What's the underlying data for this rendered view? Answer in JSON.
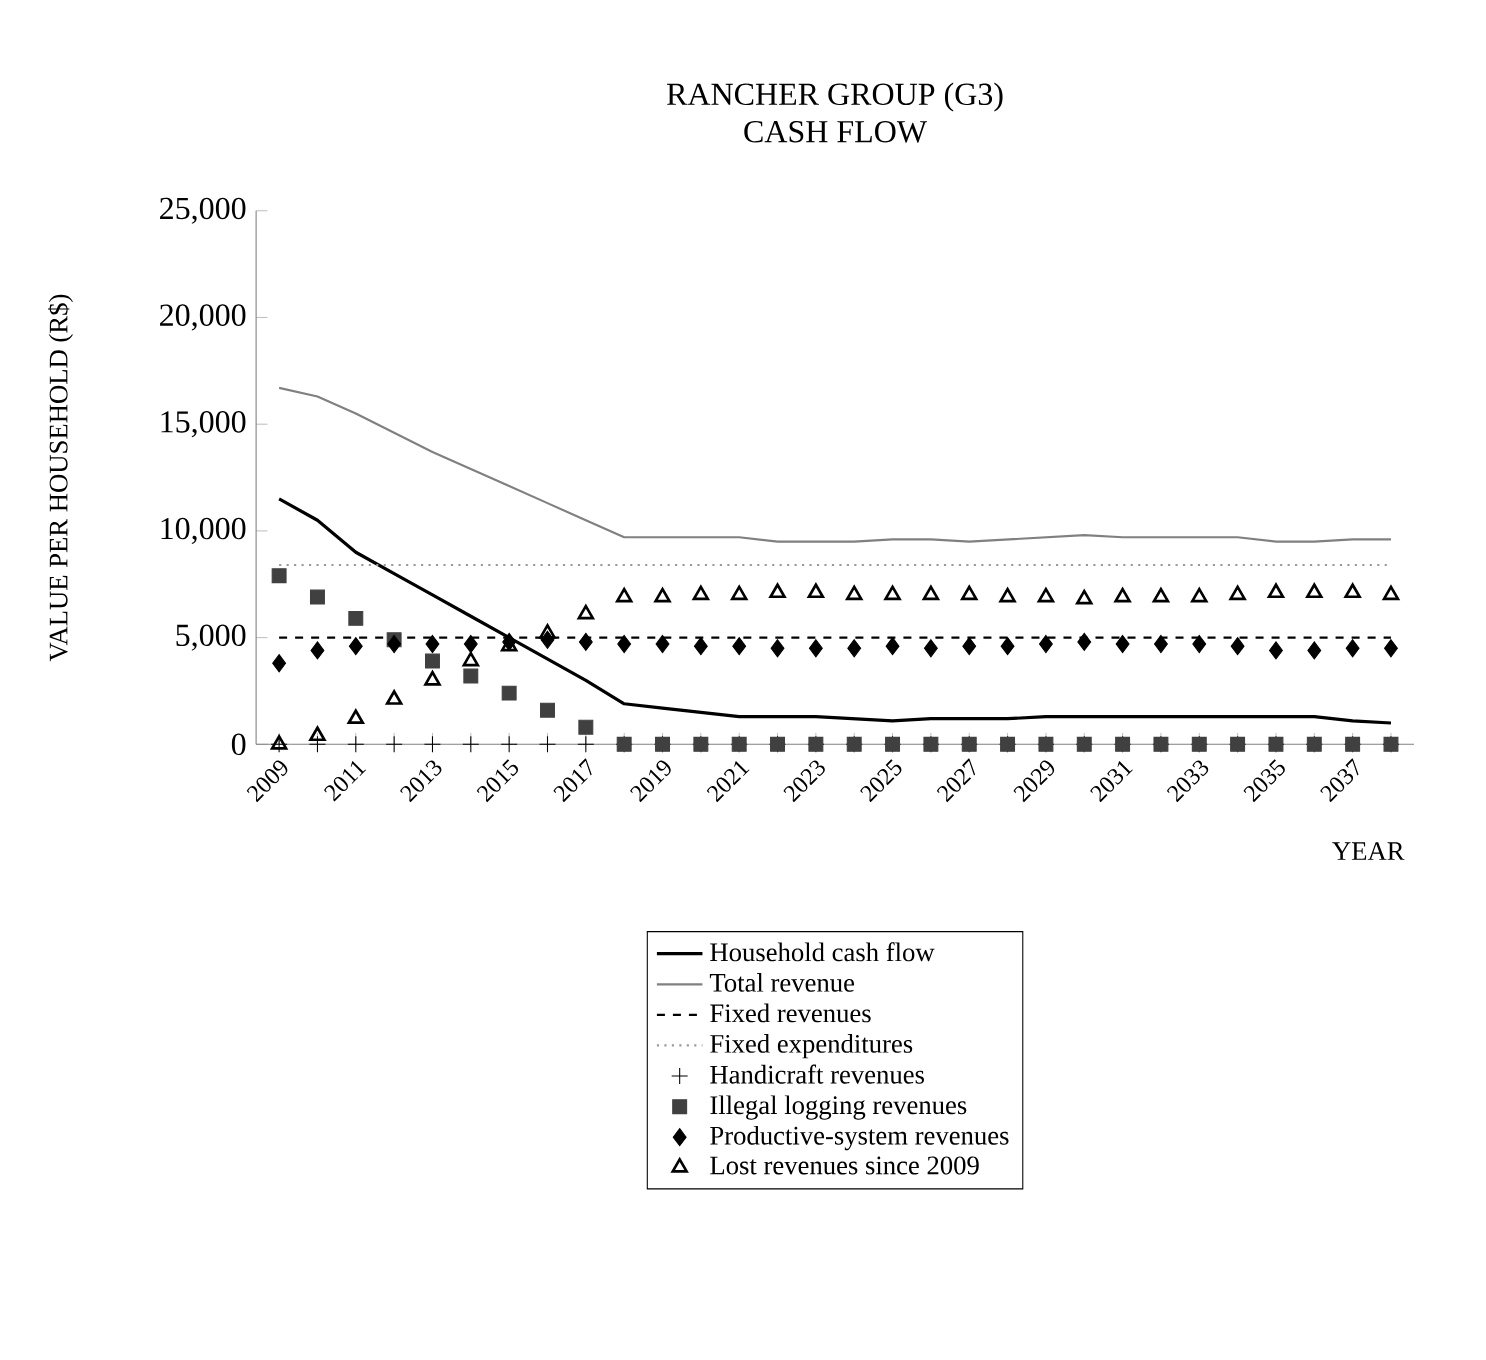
{
  "chart_data": {
    "type": "line",
    "title": "RANCHER GROUP (G3)",
    "subtitle": "CASH FLOW",
    "xlabel": "YEAR",
    "ylabel": "VALUE PER HOUSEHOLD (R$)",
    "x": [
      2009,
      2010,
      2011,
      2012,
      2013,
      2014,
      2015,
      2016,
      2017,
      2018,
      2019,
      2020,
      2021,
      2022,
      2023,
      2024,
      2025,
      2026,
      2027,
      2028,
      2029,
      2030,
      2031,
      2032,
      2033,
      2034,
      2035,
      2036,
      2037,
      2038
    ],
    "xlim": [
      2008.4,
      2038.6
    ],
    "xticks": [
      2009,
      {
        "value": 2010,
        "label": null
      },
      2011,
      {
        "value": 2012,
        "label": null
      },
      2013,
      {
        "value": 2014,
        "label": null
      },
      2015,
      {
        "value": 2016,
        "label": null
      },
      2017,
      {
        "value": 2018,
        "label": null
      },
      2019,
      {
        "value": 2020,
        "label": null
      },
      2021,
      {
        "value": 2022,
        "label": null
      },
      2023,
      {
        "value": 2024,
        "label": null
      },
      2025,
      {
        "value": 2026,
        "label": null
      },
      2027,
      {
        "value": 2028,
        "label": null
      },
      2029,
      {
        "value": 2030,
        "label": null
      },
      2031,
      {
        "value": 2032,
        "label": null
      },
      2033,
      {
        "value": 2034,
        "label": null
      },
      2035,
      {
        "value": 2036,
        "label": null
      },
      2037,
      {
        "value": 2038,
        "label": null
      }
    ],
    "ylim": [
      0,
      25000
    ],
    "yticks": [
      {
        "value": 0,
        "label": "0"
      },
      {
        "value": 5000,
        "label": "5,000"
      },
      {
        "value": 10000,
        "label": "10,000"
      },
      {
        "value": 15000,
        "label": "15,000"
      },
      {
        "value": 20000,
        "label": "20,000"
      },
      {
        "value": 25000,
        "label": "25,000"
      }
    ],
    "grid": false,
    "legend": "bottom",
    "series": [
      {
        "name": "Household cash flow",
        "line_style": "solid",
        "marker": "none",
        "color": "#000000",
        "values": [
          11500,
          10500,
          9000,
          8000,
          7000,
          6000,
          5000,
          4000,
          3000,
          1900,
          1700,
          1500,
          1300,
          1300,
          1300,
          1200,
          1100,
          1200,
          1200,
          1200,
          1300,
          1300,
          1300,
          1300,
          1300,
          1300,
          1300,
          1300,
          1100,
          1000
        ]
      },
      {
        "name": "Total revenue",
        "line_style": "solid",
        "marker": "none",
        "color": "#808080",
        "values": [
          16700,
          16300,
          15500,
          14600,
          13700,
          12900,
          12100,
          11300,
          10500,
          9700,
          9700,
          9700,
          9700,
          9500,
          9500,
          9500,
          9600,
          9600,
          9500,
          9600,
          9700,
          9800,
          9700,
          9700,
          9700,
          9700,
          9500,
          9500,
          9600,
          9600
        ]
      },
      {
        "name": "Fixed revenues",
        "line_style": "dashed",
        "marker": "none",
        "color": "#000000",
        "values": [
          5000,
          5000,
          5000,
          5000,
          5000,
          5000,
          5000,
          5000,
          5000,
          5000,
          5000,
          5000,
          5000,
          5000,
          5000,
          5000,
          5000,
          5000,
          5000,
          5000,
          5000,
          5000,
          5000,
          5000,
          5000,
          5000,
          5000,
          5000,
          5000,
          5000
        ]
      },
      {
        "name": "Fixed expenditures",
        "line_style": "dotted",
        "marker": "none",
        "color": "#999999",
        "values": [
          8400,
          8400,
          8400,
          8400,
          8400,
          8400,
          8400,
          8400,
          8400,
          8400,
          8400,
          8400,
          8400,
          8400,
          8400,
          8400,
          8400,
          8400,
          8400,
          8400,
          8400,
          8400,
          8400,
          8400,
          8400,
          8400,
          8400,
          8400,
          8400,
          8400
        ]
      },
      {
        "name": "Handicraft revenues",
        "type": "scatter",
        "marker": "cross",
        "color": "#000000",
        "values": [
          0,
          0,
          0,
          0,
          0,
          0,
          0,
          0,
          0,
          0,
          0,
          0,
          0,
          0,
          0,
          0,
          0,
          0,
          0,
          0,
          0,
          0,
          0,
          0,
          0,
          0,
          0,
          0,
          0,
          0
        ]
      },
      {
        "name": "Illegal logging revenues",
        "type": "scatter",
        "marker": "square",
        "color": "#404040",
        "values": [
          7900,
          6900,
          5900,
          4900,
          3900,
          3200,
          2400,
          1600,
          800,
          0,
          0,
          0,
          0,
          0,
          0,
          0,
          0,
          0,
          0,
          0,
          0,
          0,
          0,
          0,
          0,
          0,
          0,
          0,
          0,
          0
        ]
      },
      {
        "name": "Productive-system revenues",
        "type": "scatter",
        "marker": "diamond",
        "color": "#000000",
        "values": [
          3800,
          4400,
          4600,
          4700,
          4700,
          4700,
          4800,
          4900,
          4800,
          4700,
          4700,
          4600,
          4600,
          4500,
          4500,
          4500,
          4600,
          4500,
          4600,
          4600,
          4700,
          4800,
          4700,
          4700,
          4700,
          4600,
          4400,
          4400,
          4500,
          4500
        ]
      },
      {
        "name": "Lost revenues since 2009",
        "type": "scatter",
        "marker": "triangle",
        "color": "#000000",
        "values": [
          0,
          400,
          1200,
          2100,
          3000,
          3900,
          4600,
          5200,
          6100,
          6900,
          6900,
          7000,
          7000,
          7100,
          7100,
          7000,
          7000,
          7000,
          7000,
          6900,
          6900,
          6800,
          6900,
          6900,
          6900,
          7000,
          7100,
          7100,
          7100,
          7000
        ]
      }
    ]
  }
}
